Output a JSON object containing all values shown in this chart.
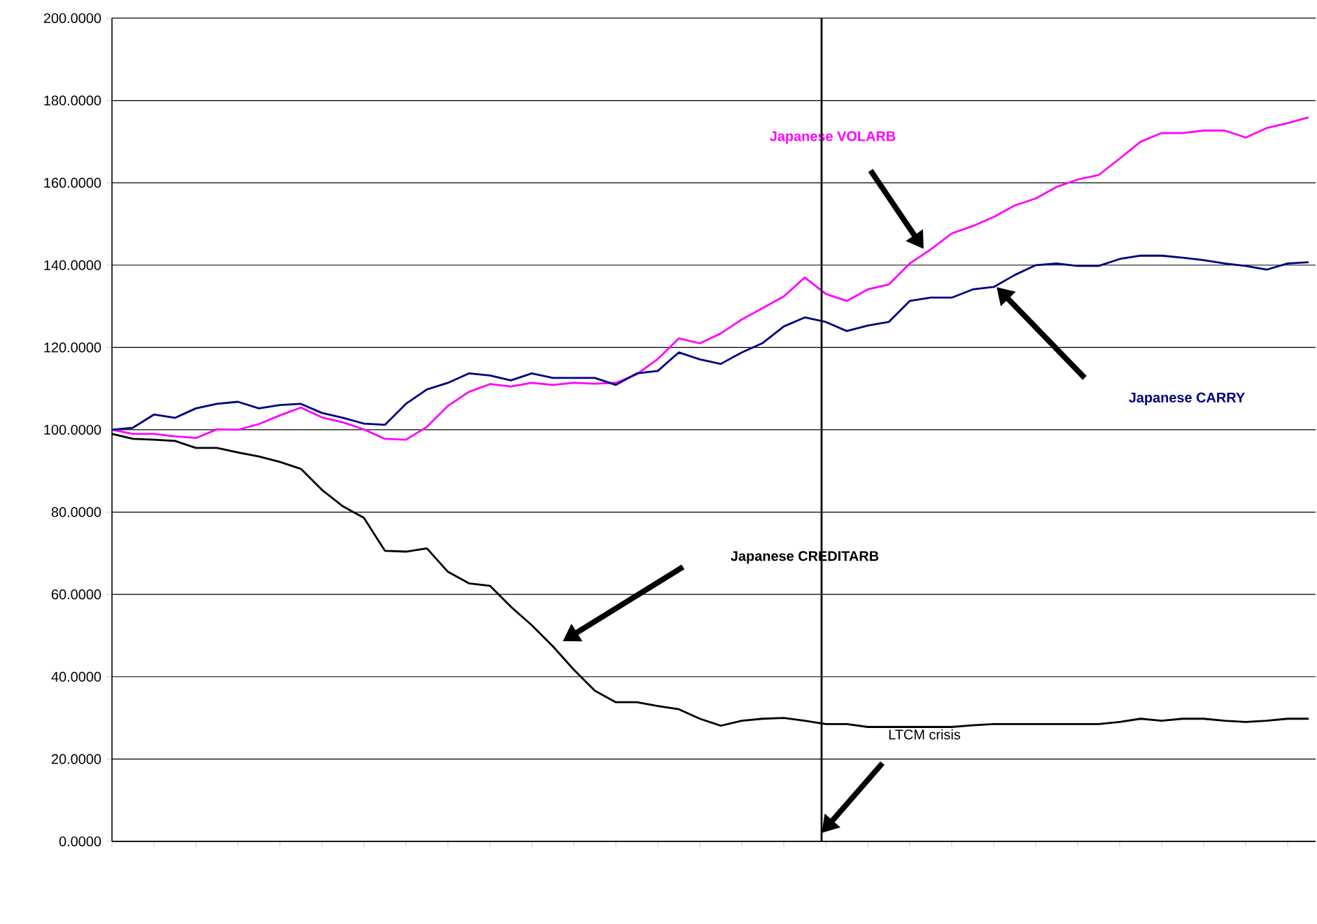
{
  "chart_data": {
    "type": "line",
    "categories": [
      null,
      null,
      null,
      null,
      null,
      null,
      null,
      null,
      null,
      null,
      null,
      null,
      null,
      null,
      null,
      null,
      null,
      null,
      null,
      null,
      null,
      null,
      null,
      null,
      null,
      null,
      null,
      null,
      null,
      null,
      null,
      null,
      null,
      null,
      null,
      null,
      null,
      null,
      null,
      null,
      null,
      null,
      null,
      null,
      null,
      null,
      null,
      null,
      null,
      null,
      null,
      null,
      null,
      null,
      null,
      null,
      null,
      null
    ],
    "series": [
      {
        "name": "Japanese VOLARB",
        "color": "#ff00ff",
        "values": [
          100,
          99,
          99,
          98.4,
          98,
          100.1,
          100,
          101.4,
          103.5,
          105.4,
          103,
          101.8,
          100.1,
          97.8,
          97.6,
          100.7,
          105.8,
          109.2,
          111.1,
          110.5,
          111.4,
          110.9,
          111.4,
          111.2,
          111.4,
          113.5,
          117.2,
          122.2,
          121,
          123.4,
          126.8,
          129.6,
          132.4,
          137,
          133,
          131.3,
          134.1,
          135.3,
          140.4,
          143.8,
          147.7,
          149.5,
          151.7,
          154.5,
          156.2,
          159,
          160.8,
          161.9,
          165.9,
          170,
          172.1,
          172.1,
          172.7,
          172.7,
          171,
          173.3,
          174.5,
          175.9
        ]
      },
      {
        "name": "Japanese CARRY",
        "color": "#000080",
        "values": [
          100,
          100.5,
          103.7,
          102.9,
          105.2,
          106.3,
          106.8,
          105.2,
          106,
          106.3,
          104.1,
          102.9,
          101.5,
          101.2,
          106.3,
          109.8,
          111.4,
          113.7,
          113.2,
          112,
          113.7,
          112.6,
          112.6,
          112.6,
          110.9,
          113.7,
          114.3,
          118.8,
          117.1,
          116,
          118.8,
          121.1,
          125.1,
          127.3,
          126.2,
          124,
          125.3,
          126.2,
          131.3,
          132.1,
          132.1,
          134.1,
          134.7,
          137.6,
          140,
          140.4,
          139.8,
          139.8,
          141.5,
          142.3,
          142.3,
          141.8,
          141.2,
          140.4,
          139.8,
          138.9,
          140.4,
          140.7
        ]
      },
      {
        "name": "Japanese CREDITARB",
        "color": "#000000",
        "values": [
          99,
          97.8,
          97.6,
          97.3,
          95.6,
          95.6,
          94.5,
          93.5,
          92.2,
          90.5,
          85.4,
          81.4,
          78.6,
          70.6,
          70.4,
          71.2,
          65.5,
          62.7,
          62.1,
          57,
          52.5,
          47.4,
          41.7,
          36.6,
          33.8,
          33.8,
          32.9,
          32.1,
          29.8,
          28.1,
          29.3,
          29.8,
          30,
          29.3,
          28.5,
          28.5,
          27.8,
          27.8,
          27.8,
          27.8,
          27.8,
          28.2,
          28.5,
          28.5,
          28.5,
          28.5,
          28.5,
          28.5,
          29,
          29.8,
          29.3,
          29.8,
          29.8,
          29.3,
          29,
          29.3,
          29.8,
          29.8
        ]
      }
    ],
    "ylim": [
      0,
      200
    ],
    "yticks": [
      {
        "value": 0,
        "label": "0.0000"
      },
      {
        "value": 20,
        "label": "20.0000"
      },
      {
        "value": 40,
        "label": "40.0000"
      },
      {
        "value": 60,
        "label": "60.0000"
      },
      {
        "value": 80,
        "label": "80.0000"
      },
      {
        "value": 100,
        "label": "100.0000"
      },
      {
        "value": 120,
        "label": "120.0000"
      },
      {
        "value": 140,
        "label": "140.0000"
      },
      {
        "value": 160,
        "label": "160.0000"
      },
      {
        "value": 180,
        "label": "180.0000"
      },
      {
        "value": 200,
        "label": "200.0000"
      }
    ],
    "tick_labels": "y",
    "grid": "y",
    "legend": false,
    "marker": "none",
    "line_style": "solid",
    "annotations": [
      "LTCM crisis"
    ]
  }
}
